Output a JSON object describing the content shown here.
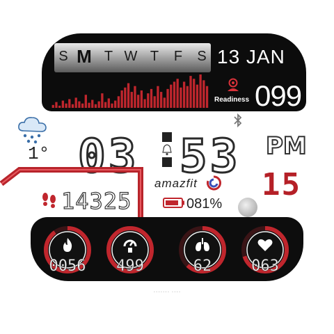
{
  "week": {
    "days": [
      "S",
      "M",
      "T",
      "W",
      "T",
      "F",
      "S"
    ],
    "active_index": 1
  },
  "date": {
    "text": "13 JAN"
  },
  "readiness": {
    "label": "Readiness",
    "value": "099"
  },
  "activity_bars": [
    4,
    8,
    3,
    10,
    6,
    12,
    5,
    14,
    9,
    6,
    18,
    7,
    11,
    5,
    9,
    20,
    8,
    13,
    6,
    10,
    16,
    24,
    28,
    34,
    22,
    30,
    18,
    24,
    12,
    20,
    26,
    16,
    30,
    22,
    14,
    26,
    32,
    36,
    40,
    28,
    36,
    30,
    44,
    40,
    32,
    46,
    38,
    30
  ],
  "weather": {
    "temperature": "1°"
  },
  "time": {
    "hour": "03",
    "minute": "53",
    "ampm": "PM"
  },
  "day_number": "15",
  "steps": {
    "value": "14325"
  },
  "brand": {
    "text": "amazfit"
  },
  "battery": {
    "value": "081%"
  },
  "metrics": [
    {
      "name": "calories",
      "icon": "flame-icon",
      "value": "0056",
      "progress": 0.9
    },
    {
      "name": "pai",
      "icon": "pai-icon",
      "value": "499",
      "progress": 1.0
    },
    {
      "name": "spo2",
      "icon": "lungs-icon",
      "value": "62",
      "progress": 0.62
    },
    {
      "name": "heart-rate",
      "icon": "heart-icon",
      "value": "063",
      "progress": 0.7
    }
  ],
  "colors": {
    "accent": "#c0262d",
    "panel": "#0c0c0c"
  },
  "footer": {
    "text": "······· ····"
  }
}
